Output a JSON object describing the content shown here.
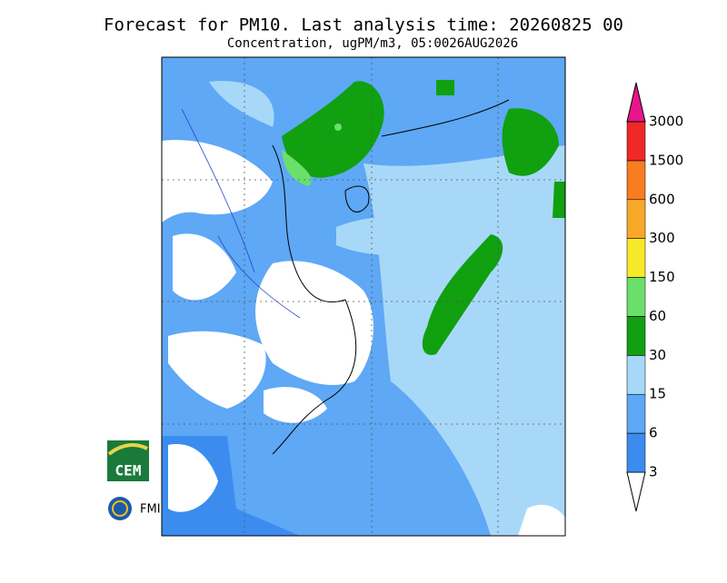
{
  "header": {
    "title": "Forecast for PM10. Last analysis time: 20260825 00",
    "subtitle": "Concentration, ugPM/m3, 05:0026AUG2026"
  },
  "colorbar": {
    "levels": [
      3,
      6,
      15,
      30,
      60,
      150,
      300,
      600,
      1500,
      3000
    ],
    "colors": [
      "#ffffff",
      "#3c8cf0",
      "#5ea8f5",
      "#a8d8f8",
      "#10a010",
      "#6ae06a",
      "#f8e82a",
      "#f8a828",
      "#f87c20",
      "#f02828",
      "#e8158a"
    ]
  },
  "logos": {
    "left_top": "CEM",
    "left_bottom": "FMI"
  }
}
